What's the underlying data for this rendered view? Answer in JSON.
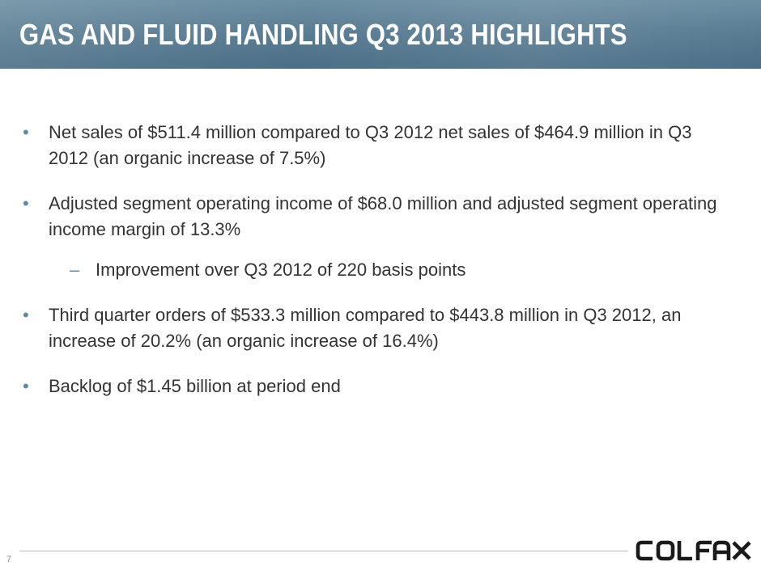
{
  "slide": {
    "title": "GAS AND FLUID HANDLING Q3 2013 HIGHLIGHTS",
    "bullets": [
      "Net sales of $511.4 million compared to Q3 2012 net sales of $464.9 million in Q3 2012 (an organic increase of 7.5%)",
      "Adjusted segment operating income of $68.0 million and adjusted segment operating income margin of 13.3%",
      "Third quarter orders of $533.3 million compared to $443.8 million in Q3 2012, an increase of 20.2% (an organic increase of 16.4%)",
      "Backlog of $1.45 billion at period end"
    ],
    "sub_bullet": "Improvement over Q3 2012 of 220 basis points",
    "bullet_marker": "•",
    "sub_marker": "–",
    "page_number": "7",
    "logo_text": "COLFAX"
  },
  "colors": {
    "title_bar": "#5a7d93",
    "bullet_marker": "#5f8aa6",
    "body_text": "#333333",
    "logo": "#1a1a1a"
  }
}
